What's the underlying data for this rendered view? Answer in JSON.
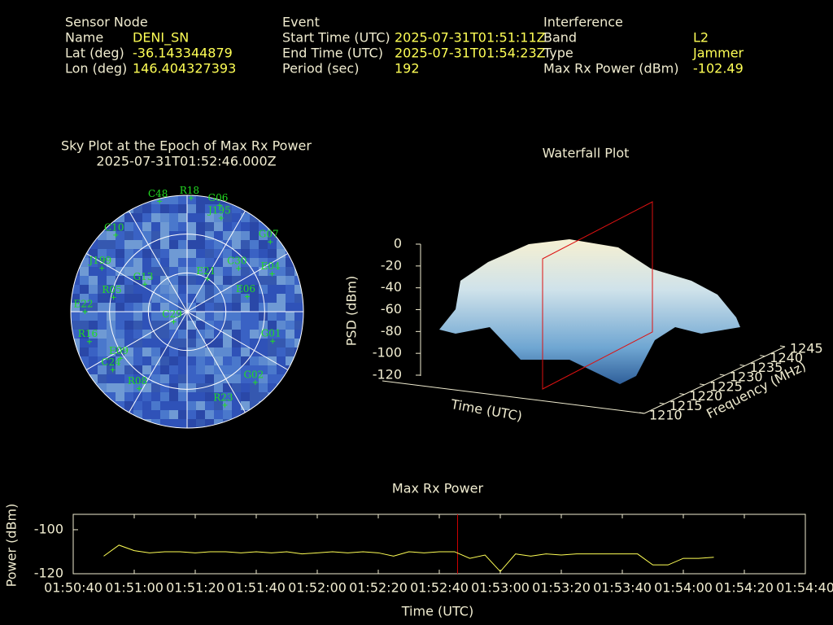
{
  "header": {
    "sensor_node": {
      "title": "Sensor Node",
      "rows": [
        [
          "Name",
          "DENI_SN"
        ],
        [
          "Lat (deg)",
          "-36.143344879"
        ],
        [
          "Lon (deg)",
          "146.404327393"
        ]
      ]
    },
    "event": {
      "title": "Event",
      "rows": [
        [
          "Start Time (UTC)",
          "2025-07-31T01:51:11Z"
        ],
        [
          "End Time (UTC)",
          "2025-07-31T01:54:23Z"
        ],
        [
          "Period (sec)",
          "192"
        ]
      ]
    },
    "interference": {
      "title": "Interference",
      "rows": [
        [
          "Band",
          "L2"
        ],
        [
          "Type",
          "Jammer"
        ],
        [
          "Max Rx Power (dBm)",
          "-102.49"
        ]
      ]
    }
  },
  "chart_data": [
    {
      "type": "polar-scatter",
      "title": "Sky Plot at the Epoch of Max Rx Power",
      "subtitle": "2025-07-31T01:52:46.000Z",
      "color": "#22dd22",
      "elevation_lim": [
        0,
        90
      ],
      "labels": [
        "R18",
        "G06",
        "J195",
        "G07",
        "E04",
        "C30",
        "E06",
        "G01",
        "G02",
        "R23",
        "R08",
        "C24",
        "E09",
        "R16",
        "E22",
        "R05",
        "G13",
        "J199",
        "C10",
        "C48",
        "C29",
        "E21"
      ],
      "azimuth": [
        2,
        17,
        20,
        50,
        66,
        50,
        76,
        109,
        136,
        158,
        212,
        232,
        235,
        253,
        270,
        281,
        303,
        297,
        317,
        346,
        233,
        32
      ],
      "elevation": [
        2,
        4,
        13,
        6,
        18,
        38,
        42,
        20,
        14,
        12,
        20,
        17,
        27,
        11,
        11,
        32,
        51,
        16,
        9,
        2,
        77,
        60
      ]
    },
    {
      "type": "surface",
      "title": "Waterfall Plot",
      "zlabel": "PSD (dBm)",
      "xlabel": "Time (UTC)",
      "ylabel": "Frequency (MHz)",
      "zlim": [
        -120,
        0
      ],
      "zticks": [
        0,
        -20,
        -40,
        -60,
        -80,
        -100,
        -120
      ],
      "ylim": [
        1210,
        1245
      ],
      "yticks": [
        1210,
        1215,
        1220,
        1225,
        1230,
        1235,
        1240,
        1245
      ]
    },
    {
      "type": "line",
      "title": "Max Rx Power",
      "xlabel": "Time (UTC)",
      "ylabel": "Power (dBm)",
      "color": "#ffff55",
      "epoch_marker": {
        "x": "01:52:46",
        "color": "#cc0000"
      },
      "xlim": [
        "01:50:40",
        "01:54:40"
      ],
      "xticks": [
        "01:50:40",
        "01:51:00",
        "01:51:20",
        "01:51:40",
        "01:52:00",
        "01:52:20",
        "01:52:40",
        "01:53:00",
        "01:53:20",
        "01:53:40",
        "01:54:00",
        "01:54:20",
        "01:54:40"
      ],
      "ylim": [
        -120,
        -93
      ],
      "yticks": [
        -120,
        -100
      ],
      "x": [
        "01:50:50",
        "01:50:55",
        "01:51:00",
        "01:51:05",
        "01:51:10",
        "01:51:15",
        "01:51:20",
        "01:51:25",
        "01:51:30",
        "01:51:35",
        "01:51:40",
        "01:51:45",
        "01:51:50",
        "01:51:55",
        "01:52:00",
        "01:52:05",
        "01:52:10",
        "01:52:15",
        "01:52:20",
        "01:52:25",
        "01:52:30",
        "01:52:35",
        "01:52:40",
        "01:52:45",
        "01:52:50",
        "01:52:55",
        "01:53:00",
        "01:53:05",
        "01:53:10",
        "01:53:15",
        "01:53:20",
        "01:53:25",
        "01:53:30",
        "01:53:35",
        "01:53:40",
        "01:53:45",
        "01:53:50",
        "01:53:55",
        "01:54:00",
        "01:54:05",
        "01:54:10"
      ],
      "values": [
        -112,
        -107,
        -109.5,
        -110.5,
        -110,
        -110,
        -110.5,
        -110,
        -110,
        -110.5,
        -110,
        -110.5,
        -110,
        -111,
        -110.5,
        -110,
        -110.5,
        -110,
        -110.5,
        -112,
        -110,
        -110.5,
        -110,
        -110,
        -113,
        -111.5,
        -119,
        -111,
        -112,
        -111,
        -111.5,
        -111,
        -111,
        -111,
        -111,
        -111,
        -116,
        -116,
        -113,
        -113,
        -112.5
      ]
    }
  ]
}
